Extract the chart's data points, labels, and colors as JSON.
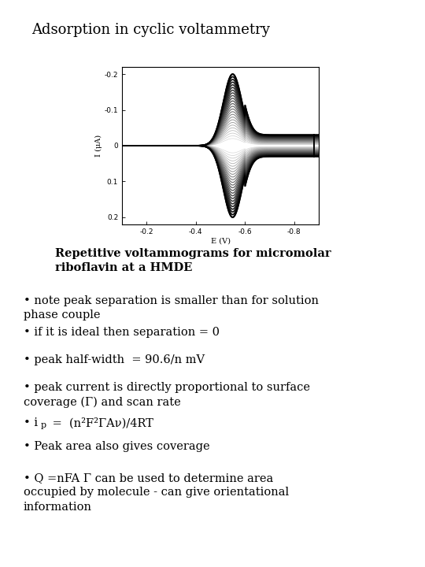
{
  "title": "Adsorption in cyclic voltammetry",
  "title_fontsize": 13,
  "background_color": "#ffffff",
  "text_color": "#000000",
  "caption_bold": "Repetitive voltammograms for micromolar\nriboflavin at a HMDE",
  "caption_fontsize": 10.5,
  "bullets": [
    {
      "text": "• note peak separation is smaller than for solution\nphase couple",
      "fontsize": 10.5
    },
    {
      "text": "• if it is ideal then separation = 0",
      "fontsize": 10.5
    },
    {
      "text": "• peak half-width  = 90.6/n mV",
      "fontsize": 10.5
    },
    {
      "text": "• peak current is directly proportional to surface\ncoverage (Γ) and scan rate",
      "fontsize": 10.5
    },
    {
      "text": "• Peak area also gives coverage",
      "fontsize": 10.5
    },
    {
      "text": "• Q =nFA Γ can be used to determine area\noccupied by molecule - can give orientational\ninformation",
      "fontsize": 10.5
    }
  ],
  "n_cycles": 25,
  "E_peak": -0.55,
  "peak_current_max": 0.2,
  "x_label": "E (V)",
  "y_label": "I (μA)"
}
